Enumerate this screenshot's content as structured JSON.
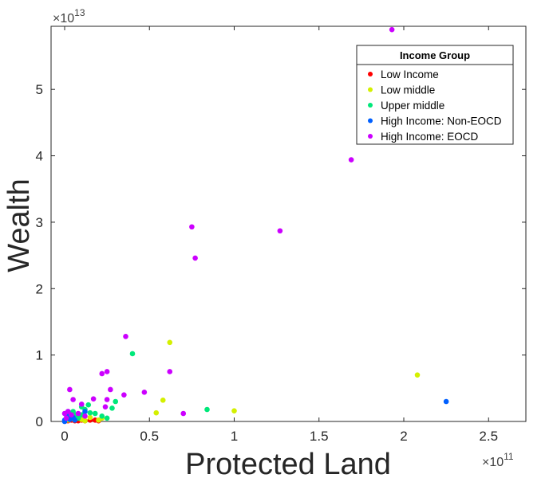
{
  "chart_data": {
    "type": "scatter",
    "title": "",
    "xlabel": "Protected Land",
    "ylabel": "Wealth",
    "x_exponent_label": "×10",
    "x_exponent_power": "11",
    "y_exponent_label": "×10",
    "y_exponent_power": "13",
    "xlim": [
      -0.08,
      2.72
    ],
    "ylim": [
      0,
      5.95
    ],
    "xticks": [
      0,
      0.5,
      1,
      1.5,
      2,
      2.5
    ],
    "xtick_labels": [
      "0",
      "0.5",
      "1",
      "1.5",
      "2",
      "2.5"
    ],
    "yticks": [
      0,
      1,
      2,
      3,
      4,
      5
    ],
    "ytick_labels": [
      "0",
      "1",
      "2",
      "3",
      "4",
      "5"
    ],
    "grid": false,
    "legend_title": "Income Group",
    "legend_position": "top-right",
    "series": [
      {
        "name": "Low Income",
        "color": "#ff0000",
        "points": [
          [
            0.02,
            0.01
          ],
          [
            0.04,
            0.02
          ],
          [
            0.06,
            0.01
          ],
          [
            0.1,
            0.02
          ],
          [
            0.12,
            0.01
          ],
          [
            0.15,
            0.02
          ],
          [
            0.03,
            0.03
          ],
          [
            0.08,
            0.01
          ],
          [
            0.18,
            0.02
          ],
          [
            0.2,
            0.01
          ]
        ]
      },
      {
        "name": "Low middle",
        "color": "#d4f000",
        "points": [
          [
            0.62,
            1.19
          ],
          [
            0.58,
            0.32
          ],
          [
            0.54,
            0.13
          ],
          [
            1.0,
            0.16
          ],
          [
            2.08,
            0.7
          ],
          [
            0.22,
            0.05
          ],
          [
            0.2,
            0.02
          ],
          [
            0.1,
            0.03
          ],
          [
            0.05,
            0.04
          ],
          [
            0.15,
            0.06
          ],
          [
            0.02,
            0.02
          ],
          [
            0.12,
            0.01
          ]
        ]
      },
      {
        "name": "Upper middle",
        "color": "#00e87a",
        "points": [
          [
            0.4,
            1.02
          ],
          [
            0.84,
            0.18
          ],
          [
            0.3,
            0.3
          ],
          [
            0.28,
            0.2
          ],
          [
            0.18,
            0.12
          ],
          [
            0.15,
            0.13
          ],
          [
            0.1,
            0.1
          ],
          [
            0.12,
            0.18
          ],
          [
            0.08,
            0.05
          ],
          [
            0.05,
            0.15
          ],
          [
            0.02,
            0.08
          ],
          [
            0.03,
            0.12
          ],
          [
            0.22,
            0.08
          ],
          [
            0.25,
            0.05
          ],
          [
            0.1,
            0.22
          ],
          [
            0.06,
            0.1
          ],
          [
            0.14,
            0.25
          ]
        ]
      },
      {
        "name": "High Income: Non-EOCD",
        "color": "#0060ff",
        "points": [
          [
            2.25,
            0.3
          ],
          [
            0.0,
            0.02
          ],
          [
            0.02,
            0.05
          ],
          [
            0.01,
            0.1
          ],
          [
            0.03,
            0.03
          ],
          [
            0.05,
            0.06
          ],
          [
            0.12,
            0.15
          ],
          [
            0.0,
            0.0
          ],
          [
            0.02,
            0.15
          ],
          [
            0.06,
            0.02
          ]
        ]
      },
      {
        "name": "High Income: EOCD",
        "color": "#cc00ff",
        "points": [
          [
            1.93,
            5.9
          ],
          [
            1.69,
            3.94
          ],
          [
            1.27,
            2.87
          ],
          [
            0.75,
            2.93
          ],
          [
            0.77,
            2.46
          ],
          [
            0.36,
            1.28
          ],
          [
            0.62,
            0.75
          ],
          [
            0.22,
            0.72
          ],
          [
            0.25,
            0.75
          ],
          [
            0.47,
            0.44
          ],
          [
            0.35,
            0.4
          ],
          [
            0.27,
            0.48
          ],
          [
            0.25,
            0.33
          ],
          [
            0.24,
            0.22
          ],
          [
            0.7,
            0.12
          ],
          [
            0.03,
            0.48
          ],
          [
            0.05,
            0.33
          ],
          [
            0.17,
            0.34
          ],
          [
            0.1,
            0.26
          ],
          [
            0.08,
            0.12
          ],
          [
            0.02,
            0.15
          ],
          [
            0.01,
            0.05
          ],
          [
            0.04,
            0.1
          ],
          [
            0.12,
            0.08
          ],
          [
            0.0,
            0.12
          ]
        ]
      }
    ]
  }
}
